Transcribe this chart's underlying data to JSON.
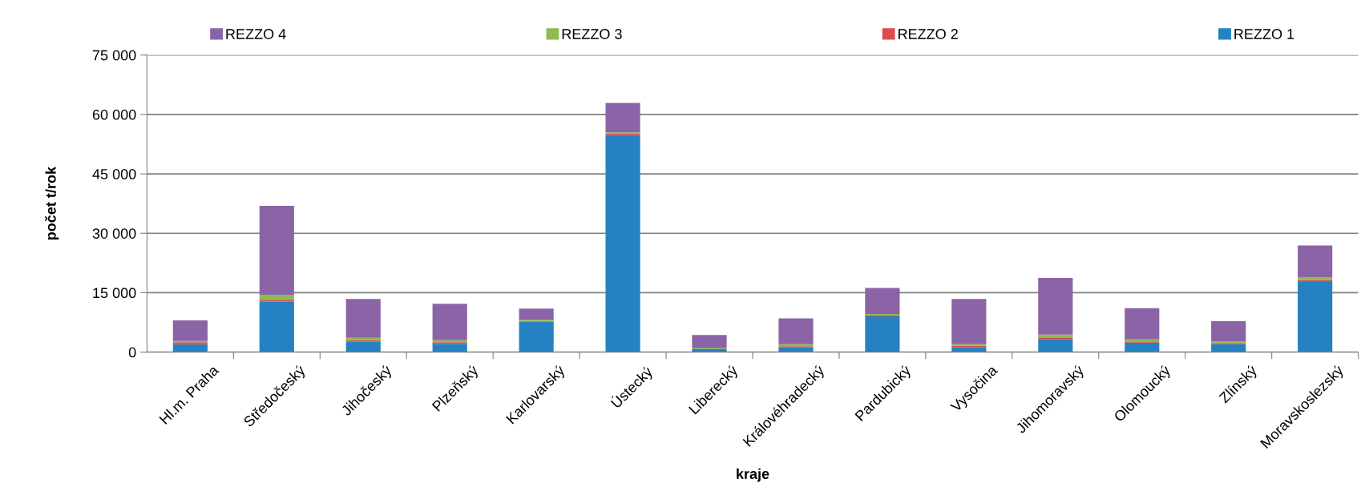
{
  "chart_data": {
    "type": "bar",
    "stacked": true,
    "xlabel": "kraje",
    "ylabel": "počet t/rok",
    "categories": [
      "Hl.m. Praha",
      "Středočeský",
      "Jihočeský",
      "Plzeňský",
      "Karlovarský",
      "Ústecký",
      "Liberecký",
      "Královéhradecký",
      "Pardubický",
      "Vysočina",
      "Jihomoravský",
      "Olomoucký",
      "Zlínský",
      "Moravskoslezský"
    ],
    "series": [
      {
        "name": "REZZO 1",
        "color": "#2482c2",
        "values": [
          2000,
          12700,
          2600,
          2100,
          7700,
          54800,
          700,
          1300,
          9000,
          1300,
          3300,
          2400,
          2000,
          17700
        ]
      },
      {
        "name": "REZZO 2",
        "color": "#dd4b4b",
        "values": [
          500,
          500,
          400,
          400,
          200,
          300,
          null,
          200,
          200,
          300,
          400,
          300,
          300,
          500
        ]
      },
      {
        "name": "REZZO 3",
        "color": "#8cbc4f",
        "values": [
          300,
          1300,
          600,
          500,
          300,
          400,
          300,
          500,
          400,
          400,
          700,
          500,
          400,
          600
        ]
      },
      {
        "name": "REZZO 4",
        "color": "#8a64a6",
        "values": [
          5200,
          22400,
          9800,
          9200,
          2800,
          7400,
          3300,
          6500,
          6600,
          11400,
          14300,
          7900,
          5100,
          8100
        ]
      }
    ],
    "ylim": [
      0,
      75000
    ],
    "yticks": [
      0,
      {
        "value": 15000,
        "label": "15 000"
      },
      {
        "value": 30000,
        "label": "30 000"
      },
      {
        "value": 45000,
        "label": "45 000"
      },
      {
        "value": 60000,
        "label": "60 000"
      },
      {
        "value": 75000,
        "label": "75 000"
      }
    ],
    "grid": "y",
    "legend": "top"
  }
}
